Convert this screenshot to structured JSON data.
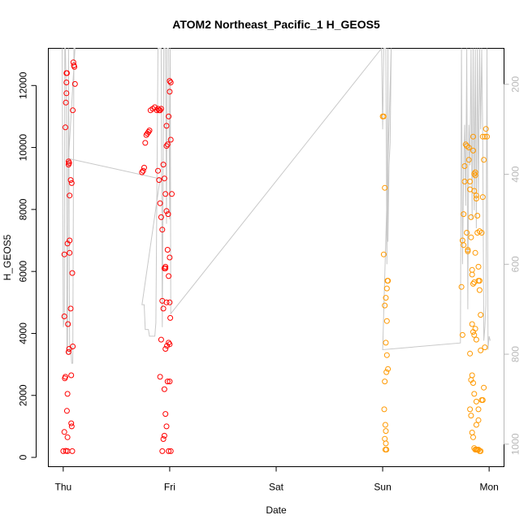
{
  "chart_data": {
    "type": "scatter",
    "title": "ATOM2 Northeast_Pacific_1 H_GEOS5",
    "xlabel": "Date",
    "ylabel": "H_GEOS5",
    "x_ticks": [
      {
        "label": "Thu",
        "x": 0
      },
      {
        "label": "Fri",
        "x": 1
      },
      {
        "label": "Sat",
        "x": 2
      },
      {
        "label": "Sun",
        "x": 3
      },
      {
        "label": "Mon",
        "x": 4
      }
    ],
    "xlim": [
      -0.14,
      4.14
    ],
    "ylim": [
      -300,
      13200
    ],
    "y_ticks": [
      0,
      2000,
      4000,
      6000,
      8000,
      10000,
      12000
    ],
    "right_axis": {
      "ticks": [
        200,
        400,
        600,
        800,
        1000
      ],
      "lim": [
        120,
        1050
      ],
      "inverted": true,
      "color": "#b8b8b8"
    },
    "series": [
      {
        "color": "#ff0000",
        "points": [
          [
            0.0,
            200
          ],
          [
            0.01,
            820
          ],
          [
            0.015,
            2550
          ],
          [
            0.02,
            2600
          ],
          [
            0.01,
            6550
          ],
          [
            0.01,
            4550
          ],
          [
            0.02,
            10650
          ],
          [
            0.025,
            11450
          ],
          [
            0.03,
            12100
          ],
          [
            0.03,
            12400
          ],
          [
            0.035,
            12400
          ],
          [
            0.03,
            11750
          ],
          [
            0.04,
            200
          ],
          [
            0.04,
            650
          ],
          [
            0.035,
            1500
          ],
          [
            0.04,
            2050
          ],
          [
            0.045,
            4300
          ],
          [
            0.04,
            6900
          ],
          [
            0.05,
            9450
          ],
          [
            0.05,
            9550
          ],
          [
            0.055,
            9500
          ],
          [
            0.06,
            8450
          ],
          [
            0.05,
            3400
          ],
          [
            0.055,
            3500
          ],
          [
            0.06,
            7000
          ],
          [
            0.06,
            6600
          ],
          [
            0.07,
            4800
          ],
          [
            0.075,
            1100
          ],
          [
            0.08,
            1000
          ],
          [
            0.085,
            200
          ],
          [
            0.075,
            2650
          ],
          [
            0.07,
            8950
          ],
          [
            0.08,
            8850
          ],
          [
            0.085,
            5950
          ],
          [
            0.09,
            11200
          ],
          [
            0.095,
            12750
          ],
          [
            0.1,
            12650
          ],
          [
            0.105,
            12600
          ],
          [
            0.11,
            12050
          ],
          [
            0.09,
            3580
          ],
          [
            0.025,
            210
          ],
          [
            0.74,
            9200
          ],
          [
            0.75,
            9250
          ],
          [
            0.76,
            9350
          ],
          [
            0.77,
            10150
          ],
          [
            0.78,
            10400
          ],
          [
            0.79,
            10450
          ],
          [
            0.8,
            10500
          ],
          [
            0.81,
            10550
          ],
          [
            0.82,
            11200
          ],
          [
            0.84,
            11250
          ],
          [
            0.86,
            11300
          ],
          [
            0.88,
            11200
          ],
          [
            0.89,
            11250
          ],
          [
            0.9,
            11200
          ],
          [
            0.91,
            11200
          ],
          [
            0.92,
            11250
          ],
          [
            0.89,
            9250
          ],
          [
            0.9,
            8950
          ],
          [
            0.91,
            8200
          ],
          [
            0.92,
            7750
          ],
          [
            0.93,
            7350
          ],
          [
            0.94,
            9450
          ],
          [
            0.95,
            6100
          ],
          [
            0.96,
            6150
          ],
          [
            0.97,
            7950
          ],
          [
            0.98,
            6700
          ],
          [
            0.99,
            5850
          ],
          [
            1.0,
            6450
          ],
          [
            0.93,
            200
          ],
          [
            0.94,
            590
          ],
          [
            0.95,
            700
          ],
          [
            0.96,
            1400
          ],
          [
            0.97,
            1000
          ],
          [
            0.98,
            2450
          ],
          [
            0.99,
            3700
          ],
          [
            1.0,
            3650
          ],
          [
            0.91,
            2600
          ],
          [
            0.92,
            3800
          ],
          [
            0.93,
            5050
          ],
          [
            0.94,
            4800
          ],
          [
            0.95,
            9000
          ],
          [
            0.96,
            8500
          ],
          [
            0.97,
            10050
          ],
          [
            0.98,
            10100
          ],
          [
            0.99,
            11000
          ],
          [
            1.0,
            11800
          ],
          [
            1.01,
            12100
          ],
          [
            1.0,
            12150
          ],
          [
            1.01,
            10250
          ],
          [
            1.02,
            8500
          ],
          [
            1.005,
            4500
          ],
          [
            1.01,
            200
          ],
          [
            0.96,
            6100
          ],
          [
            0.97,
            5000
          ],
          [
            0.95,
            2200
          ],
          [
            0.96,
            3500
          ],
          [
            0.97,
            10700
          ],
          [
            1.0,
            5000
          ],
          [
            0.985,
            7850
          ],
          [
            0.99,
            200
          ],
          [
            0.975,
            3600
          ],
          [
            1.0,
            2450
          ]
        ]
      },
      {
        "color": "#ff9900",
        "points": [
          [
            3.0,
            11000
          ],
          [
            3.01,
            11000
          ],
          [
            3.02,
            8700
          ],
          [
            3.01,
            6550
          ],
          [
            3.02,
            4900
          ],
          [
            3.03,
            5150
          ],
          [
            3.04,
            5450
          ],
          [
            3.05,
            5700
          ],
          [
            3.045,
            5700
          ],
          [
            3.04,
            4400
          ],
          [
            3.03,
            3700
          ],
          [
            3.04,
            3300
          ],
          [
            3.05,
            2850
          ],
          [
            3.035,
            2750
          ],
          [
            3.02,
            2450
          ],
          [
            3.015,
            1550
          ],
          [
            3.025,
            1050
          ],
          [
            3.03,
            850
          ],
          [
            3.02,
            600
          ],
          [
            3.03,
            450
          ],
          [
            3.025,
            250
          ],
          [
            3.035,
            250
          ],
          [
            3.74,
            5500
          ],
          [
            3.75,
            3950
          ],
          [
            3.75,
            7000
          ],
          [
            3.76,
            6850
          ],
          [
            3.76,
            7850
          ],
          [
            3.77,
            9400
          ],
          [
            3.77,
            8900
          ],
          [
            3.78,
            10100
          ],
          [
            3.79,
            10050
          ],
          [
            3.79,
            7250
          ],
          [
            3.8,
            6650
          ],
          [
            3.8,
            6700
          ],
          [
            3.81,
            10000
          ],
          [
            3.81,
            9600
          ],
          [
            3.82,
            8900
          ],
          [
            3.82,
            8650
          ],
          [
            3.83,
            7750
          ],
          [
            3.83,
            7100
          ],
          [
            3.84,
            6050
          ],
          [
            3.84,
            5900
          ],
          [
            3.85,
            10350
          ],
          [
            3.85,
            9900
          ],
          [
            3.86,
            9150
          ],
          [
            3.86,
            8600
          ],
          [
            3.87,
            9200
          ],
          [
            3.87,
            9100
          ],
          [
            3.88,
            8450
          ],
          [
            3.88,
            8350
          ],
          [
            3.89,
            7800
          ],
          [
            3.89,
            7250
          ],
          [
            3.9,
            6150
          ],
          [
            3.9,
            5700
          ],
          [
            3.91,
            5400
          ],
          [
            3.91,
            5700
          ],
          [
            3.92,
            4600
          ],
          [
            3.93,
            7250
          ],
          [
            3.94,
            10350
          ],
          [
            3.95,
            9600
          ],
          [
            3.96,
            10350
          ],
          [
            3.97,
            10600
          ],
          [
            3.98,
            10350
          ],
          [
            3.94,
            8400
          ],
          [
            3.91,
            7300
          ],
          [
            3.87,
            6600
          ],
          [
            3.86,
            5650
          ],
          [
            3.85,
            5600
          ],
          [
            3.84,
            4300
          ],
          [
            3.85,
            4050
          ],
          [
            3.86,
            3950
          ],
          [
            3.87,
            4150
          ],
          [
            3.88,
            3800
          ],
          [
            3.82,
            3350
          ],
          [
            3.83,
            2500
          ],
          [
            3.84,
            2650
          ],
          [
            3.85,
            2400
          ],
          [
            3.86,
            2050
          ],
          [
            3.88,
            1800
          ],
          [
            3.9,
            1550
          ],
          [
            3.93,
            1850
          ],
          [
            3.92,
            3450
          ],
          [
            3.95,
            2250
          ],
          [
            3.82,
            1550
          ],
          [
            3.83,
            1350
          ],
          [
            3.84,
            800
          ],
          [
            3.85,
            650
          ],
          [
            3.86,
            300
          ],
          [
            3.87,
            250
          ],
          [
            3.88,
            250
          ],
          [
            3.89,
            250
          ],
          [
            3.9,
            250
          ],
          [
            3.91,
            200
          ],
          [
            3.92,
            200
          ],
          [
            3.94,
            1850
          ],
          [
            3.96,
            3550
          ],
          [
            3.9,
            1200
          ],
          [
            3.89,
            250
          ],
          [
            3.88,
            1050
          ]
        ]
      }
    ],
    "pressure_trace": {
      "color": "#c8c8c8",
      "axis": "right"
    }
  }
}
